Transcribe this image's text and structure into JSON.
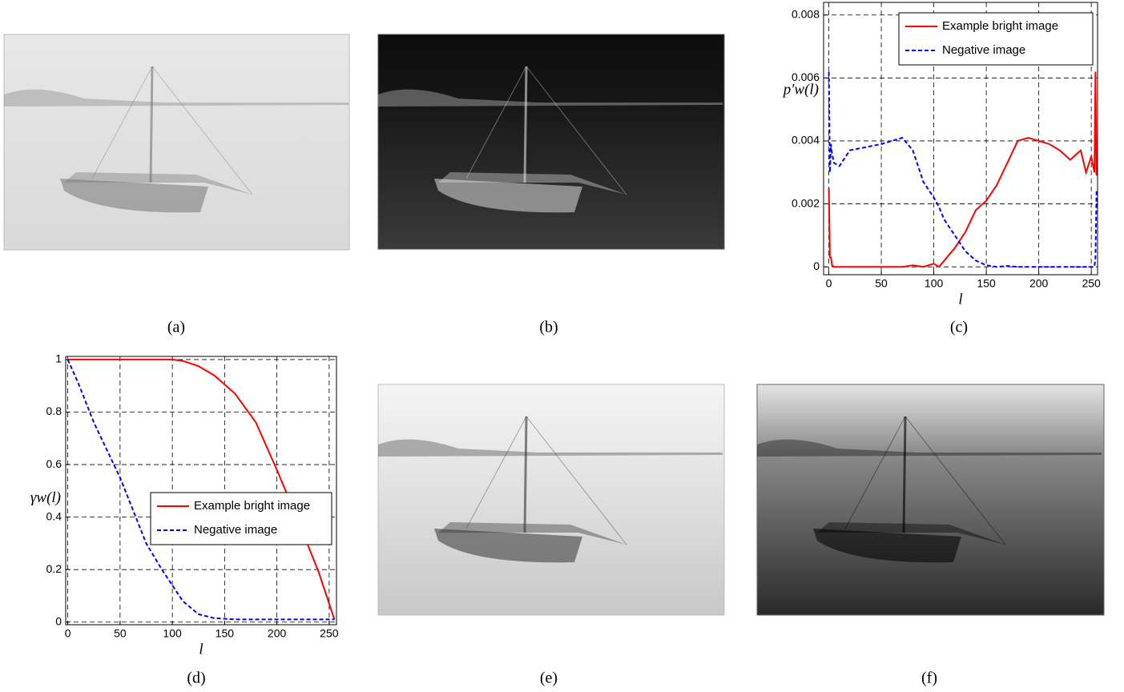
{
  "panels": [
    "(a)",
    "(b)",
    "(c)",
    "(d)",
    "(e)",
    "(f)"
  ],
  "chart_data": [
    {
      "type": "line",
      "ylabel": "p′w(l)",
      "xlabel": "l",
      "legend": "upper right",
      "grid": true,
      "xlim": [
        -5,
        256
      ],
      "ylim": [
        -0.00025,
        0.0084
      ],
      "xticks": [
        0,
        50,
        100,
        150,
        200,
        250
      ],
      "yticks": [
        0,
        0.002,
        0.004,
        0.006,
        0.008
      ],
      "x": [
        0,
        1,
        2,
        3,
        5,
        10,
        20,
        50,
        60,
        70,
        80,
        90,
        100,
        105,
        110,
        120,
        130,
        140,
        150,
        160,
        170,
        180,
        190,
        200,
        210,
        220,
        230,
        240,
        245,
        250,
        253,
        254,
        255
      ],
      "series": [
        {
          "name": "Example bright image",
          "color": "#ff0000",
          "dash": false,
          "values": [
            0.0025,
            0.0003,
            0.0003,
            5e-05,
            0,
            0,
            0,
            0,
            0,
            0,
            5e-05,
            0,
            0.0001,
            0,
            0.0002,
            0.0006,
            0.0011,
            0.0018,
            0.0021,
            0.0026,
            0.0033,
            0.004,
            0.0041,
            0.004,
            0.0039,
            0.0037,
            0.0034,
            0.0037,
            0.003,
            0.0035,
            0.003,
            0.0062,
            0.0029
          ]
        },
        {
          "name": "Negative image",
          "color": "#0000ff",
          "dash": true,
          "values": [
            0.0062,
            0.003,
            0.0039,
            0.0036,
            0.0033,
            0.0032,
            0.0037,
            0.0039,
            0.004,
            0.0041,
            0.0037,
            0.0027,
            0.0022,
            0.0019,
            0.0015,
            0.001,
            0.0005,
            0.0002,
            5e-05,
            0,
            3e-05,
            0,
            0,
            0,
            0,
            0,
            0,
            0,
            0,
            0,
            0,
            0.0003,
            0.0024
          ]
        }
      ]
    },
    {
      "type": "line",
      "ylabel": "γw(l)",
      "xlabel": "l",
      "legend": "center right",
      "grid": true,
      "xlim": [
        -2,
        257
      ],
      "ylim": [
        -0.01,
        1.012
      ],
      "xticks": [
        0,
        50,
        100,
        150,
        200,
        250
      ],
      "yticks": [
        0,
        0.2,
        0.4,
        0.6,
        0.8,
        1
      ],
      "x": [
        0,
        10,
        25,
        50,
        75,
        90,
        100,
        110,
        125,
        140,
        160,
        180,
        200,
        220,
        240,
        255
      ],
      "series": [
        {
          "name": "Example bright image",
          "color": "#ff0000",
          "dash": false,
          "values": [
            1,
            1,
            1,
            1,
            1,
            1,
            1,
            0.995,
            0.975,
            0.94,
            0.87,
            0.76,
            0.58,
            0.39,
            0.19,
            0.01
          ]
        },
        {
          "name": "Negative image",
          "color": "#0000ff",
          "dash": true,
          "values": [
            1,
            0.91,
            0.76,
            0.55,
            0.3,
            0.2,
            0.14,
            0.08,
            0.03,
            0.015,
            0.01,
            0.01,
            0.01,
            0.01,
            0.01,
            0.01
          ]
        }
      ]
    }
  ]
}
